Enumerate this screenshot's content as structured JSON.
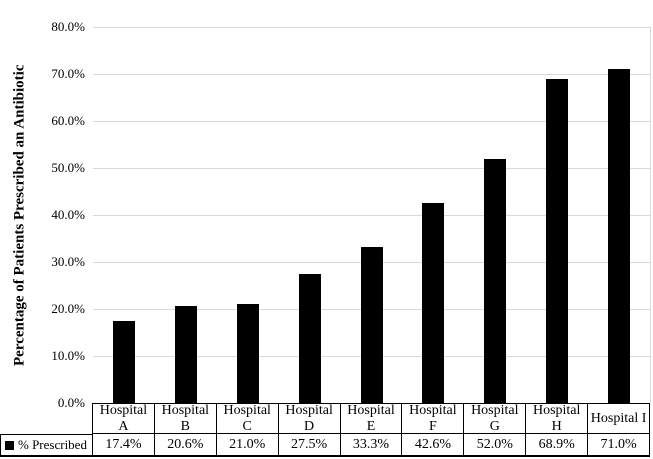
{
  "figure": {
    "background": "#ffffff",
    "text_color": "#000000"
  },
  "chart_data": {
    "type": "bar",
    "title": "",
    "xlabel": "",
    "ylabel": "Percentage of Patients Prescribed an Antibiotic",
    "categories": [
      "Hospital A",
      "Hospital B",
      "Hospital C",
      "Hospital D",
      "Hospital E",
      "Hospital F",
      "Hospital G",
      "Hospital H",
      "Hospital I"
    ],
    "category_label_lines": [
      [
        "Hospital",
        "A"
      ],
      [
        "Hospital",
        "B"
      ],
      [
        "Hospital",
        "C"
      ],
      [
        "Hospital",
        "D"
      ],
      [
        "Hospital",
        "E"
      ],
      [
        "Hospital",
        "F"
      ],
      [
        "Hospital",
        "G"
      ],
      [
        "Hospital",
        "H"
      ],
      [
        "Hospital I"
      ]
    ],
    "series": [
      {
        "name": "% Prescribed",
        "values": [
          17.4,
          20.6,
          21.0,
          27.5,
          33.3,
          42.6,
          52.0,
          68.9,
          71.0
        ]
      }
    ],
    "value_labels": [
      "17.4%",
      "20.6%",
      "21.0%",
      "27.5%",
      "33.3%",
      "42.6%",
      "52.0%",
      "68.9%",
      "71.0%"
    ],
    "ylim": [
      0,
      80
    ],
    "ytick_step": 10,
    "ytick_labels": [
      "80.0%",
      "70.0%",
      "60.0%",
      "50.0%",
      "40.0%",
      "30.0%",
      "20.0%",
      "10.0%",
      "0.0%"
    ],
    "grid": true,
    "legend_position": "data-table-left",
    "bar_color": "#000000",
    "gridline_color": "#d9d9d9",
    "table_border_color": "#000000"
  }
}
